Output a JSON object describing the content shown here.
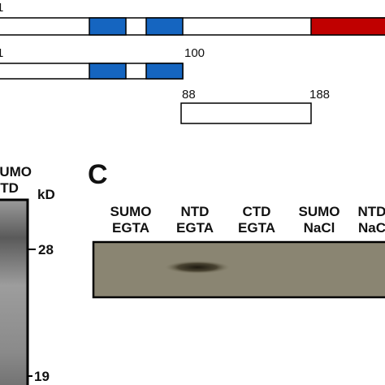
{
  "panel_a": {
    "row1_start": "1",
    "row2_start": "1",
    "row2_end": "100",
    "row3_start": "88",
    "row3_end": "188"
  },
  "panel_b": {
    "lane_top": "SUMO",
    "lane_bottom": "NTD",
    "unit": "kD",
    "markers": [
      "28",
      "19"
    ]
  },
  "panel_c": {
    "letter": "C",
    "lanes": [
      [
        "SUMO",
        "EGTA"
      ],
      [
        "NTD",
        "EGTA"
      ],
      [
        "CTD",
        "EGTA"
      ],
      [
        "SUMO",
        "NaCl"
      ],
      [
        "NTD",
        "NaC"
      ]
    ]
  }
}
